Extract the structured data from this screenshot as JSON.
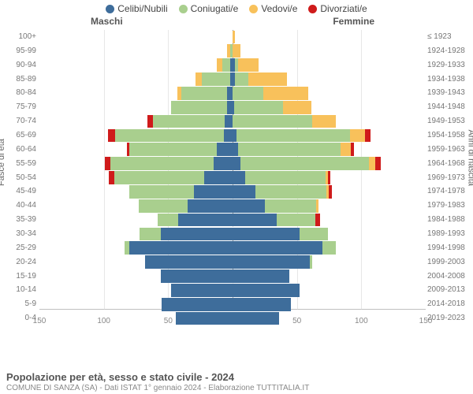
{
  "legend": {
    "items": [
      {
        "label": "Celibi/Nubili",
        "color": "#3e6d9b"
      },
      {
        "label": "Coniugati/e",
        "color": "#a9cf8e"
      },
      {
        "label": "Vedovi/e",
        "color": "#f8c15b"
      },
      {
        "label": "Divorziati/e",
        "color": "#cf1b1b"
      }
    ]
  },
  "headers": {
    "male": "Maschi",
    "female": "Femmine"
  },
  "axis": {
    "left_title": "Fasce di età",
    "right_title": "Anni di nascita",
    "x_ticks": [
      150,
      100,
      50,
      0,
      50,
      100,
      150
    ],
    "x_max": 150,
    "grid_color": "#d8d8d8"
  },
  "colors": {
    "single": "#3e6d9b",
    "married": "#a9cf8e",
    "widowed": "#f8c15b",
    "divorced": "#cf1b1b",
    "background": "#ffffff"
  },
  "footer": {
    "title": "Popolazione per età, sesso e stato civile - 2024",
    "subtitle": "COMUNE DI SANZA (SA) - Dati ISTAT 1° gennaio 2024 - Elaborazione TUTTITALIA.IT"
  },
  "rows": [
    {
      "age": "100+",
      "birth": "≤ 1923",
      "m": [
        0,
        0,
        0,
        0
      ],
      "f": [
        0,
        0,
        2,
        0
      ]
    },
    {
      "age": "95-99",
      "birth": "1924-1928",
      "m": [
        0,
        2,
        2,
        0
      ],
      "f": [
        0,
        0,
        6,
        0
      ]
    },
    {
      "age": "90-94",
      "birth": "1929-1933",
      "m": [
        2,
        6,
        4,
        0
      ],
      "f": [
        2,
        2,
        16,
        0
      ]
    },
    {
      "age": "85-89",
      "birth": "1934-1938",
      "m": [
        2,
        22,
        5,
        0
      ],
      "f": [
        2,
        10,
        30,
        0
      ]
    },
    {
      "age": "80-84",
      "birth": "1939-1943",
      "m": [
        4,
        36,
        3,
        0
      ],
      "f": [
        0,
        24,
        35,
        0
      ]
    },
    {
      "age": "75-79",
      "birth": "1944-1948",
      "m": [
        4,
        44,
        0,
        0
      ],
      "f": [
        1,
        38,
        22,
        0
      ]
    },
    {
      "age": "70-74",
      "birth": "1949-1953",
      "m": [
        6,
        56,
        0,
        4
      ],
      "f": [
        0,
        62,
        18,
        0
      ]
    },
    {
      "age": "65-69",
      "birth": "1954-1958",
      "m": [
        7,
        84,
        0,
        6
      ],
      "f": [
        3,
        88,
        12,
        4
      ]
    },
    {
      "age": "60-64",
      "birth": "1959-1963",
      "m": [
        12,
        68,
        0,
        2
      ],
      "f": [
        4,
        80,
        8,
        2
      ]
    },
    {
      "age": "55-59",
      "birth": "1964-1968",
      "m": [
        15,
        80,
        0,
        4
      ],
      "f": [
        6,
        100,
        5,
        4
      ]
    },
    {
      "age": "50-54",
      "birth": "1969-1973",
      "m": [
        22,
        70,
        0,
        4
      ],
      "f": [
        10,
        62,
        2,
        2
      ]
    },
    {
      "age": "45-49",
      "birth": "1974-1978",
      "m": [
        30,
        50,
        0,
        0
      ],
      "f": [
        18,
        55,
        2,
        2
      ]
    },
    {
      "age": "40-44",
      "birth": "1979-1983",
      "m": [
        35,
        38,
        0,
        0
      ],
      "f": [
        25,
        40,
        2,
        0
      ]
    },
    {
      "age": "35-39",
      "birth": "1984-1988",
      "m": [
        42,
        16,
        0,
        0
      ],
      "f": [
        34,
        30,
        0,
        4
      ]
    },
    {
      "age": "30-34",
      "birth": "1989-1993",
      "m": [
        56,
        16,
        0,
        0
      ],
      "f": [
        52,
        22,
        0,
        0
      ]
    },
    {
      "age": "25-29",
      "birth": "1994-1998",
      "m": [
        80,
        4,
        0,
        0
      ],
      "f": [
        70,
        10,
        0,
        0
      ]
    },
    {
      "age": "20-24",
      "birth": "1999-2003",
      "m": [
        68,
        0,
        0,
        0
      ],
      "f": [
        60,
        2,
        0,
        0
      ]
    },
    {
      "age": "15-19",
      "birth": "2004-2008",
      "m": [
        56,
        0,
        0,
        0
      ],
      "f": [
        44,
        0,
        0,
        0
      ]
    },
    {
      "age": "10-14",
      "birth": "2009-2013",
      "m": [
        48,
        0,
        0,
        0
      ],
      "f": [
        52,
        0,
        0,
        0
      ]
    },
    {
      "age": "5-9",
      "birth": "2014-2018",
      "m": [
        55,
        0,
        0,
        0
      ],
      "f": [
        45,
        0,
        0,
        0
      ]
    },
    {
      "age": "0-4",
      "birth": "2019-2023",
      "m": [
        44,
        0,
        0,
        0
      ],
      "f": [
        36,
        0,
        0,
        0
      ]
    }
  ]
}
